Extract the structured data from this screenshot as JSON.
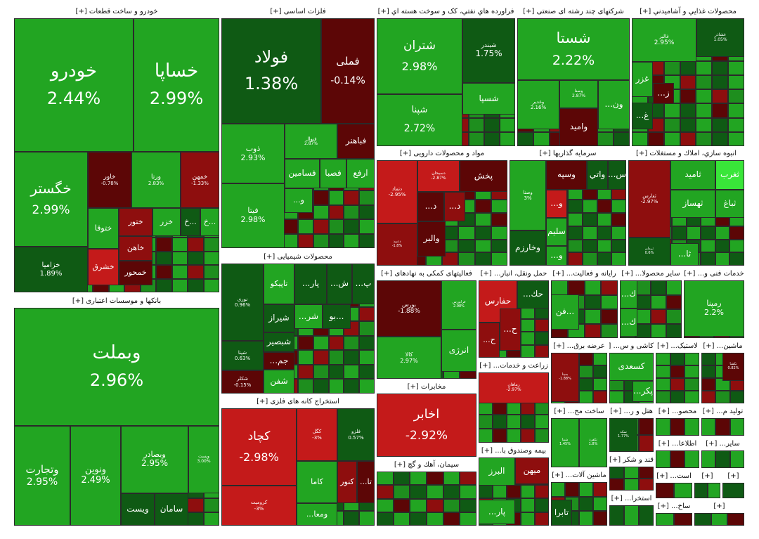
{
  "colors": {
    "bg": "#ffffff",
    "pos_strong": "#22a522",
    "pos_mid": "#1e8e1e",
    "pos_dark": "#0f5a14",
    "pos_bright": "#39e639",
    "neg_strong": "#c41a1a",
    "neg_mid": "#8e0e0e",
    "neg_dark": "#5c0606",
    "flat": "#3a3a3a"
  },
  "chart_data": {
    "type": "treemap",
    "title": "",
    "sectors": [
      {
        "id": "s_auto",
        "name": "خودرو و ساخت قطعات [+]",
        "stocks": [
          {
            "name": "خودرو",
            "change": "2.44%",
            "tone": "pos_strong",
            "big": true
          },
          {
            "name": "خساپا",
            "change": "2.99%",
            "tone": "pos_strong",
            "big": true
          },
          {
            "name": "خگستر",
            "change": "2.99%",
            "tone": "pos_strong",
            "big": true
          },
          {
            "name": "خاور",
            "change": "-0.78%",
            "tone": "neg_dark"
          },
          {
            "name": "ورنا",
            "change": "2.83%",
            "tone": "pos_strong"
          },
          {
            "name": "خمهن",
            "change": "-1.33%",
            "tone": "neg_mid"
          },
          {
            "name": "ختوقا",
            "change": "",
            "tone": "pos_strong"
          },
          {
            "name": "ختور",
            "change": "",
            "tone": "neg_mid"
          },
          {
            "name": "خزر",
            "change": "",
            "tone": "pos_strong"
          },
          {
            "name": "خ...",
            "change": "",
            "tone": "pos_dark"
          },
          {
            "name": "خ...",
            "change": "",
            "tone": "pos_strong"
          },
          {
            "name": "خاهن",
            "change": "",
            "tone": "neg_mid"
          },
          {
            "name": "خزامیا",
            "change": "1.89%",
            "tone": "pos_dark"
          },
          {
            "name": "خشرق",
            "change": "",
            "tone": "neg_strong"
          },
          {
            "name": "خمحور",
            "change": "",
            "tone": "neg_dark"
          }
        ]
      },
      {
        "id": "s_bank",
        "name": "بانکها و موسسات اعتباری [+]",
        "stocks": [
          {
            "name": "وبملت",
            "change": "2.96%",
            "tone": "pos_strong",
            "big": true
          },
          {
            "name": "وتجارت",
            "change": "2.95%",
            "tone": "pos_strong"
          },
          {
            "name": "ونوین",
            "change": "2.49%",
            "tone": "pos_strong"
          },
          {
            "name": "وبصادر",
            "change": "2.95%",
            "tone": "pos_strong"
          },
          {
            "name": "وپست",
            "change": "3.00%",
            "tone": "pos_strong"
          },
          {
            "name": "ویست",
            "change": "",
            "tone": "pos_dark"
          },
          {
            "name": "سامان",
            "change": "",
            "tone": "pos_dark"
          }
        ]
      },
      {
        "id": "s_metal",
        "name": "فلزات اساسی [+]",
        "stocks": [
          {
            "name": "فولاد",
            "change": "1.38%",
            "tone": "pos_dark",
            "big": true
          },
          {
            "name": "فملی",
            "change": "-0.14%",
            "tone": "neg_dark",
            "big": true
          },
          {
            "name": "ذوب",
            "change": "2.93%",
            "tone": "pos_strong"
          },
          {
            "name": "فنوال",
            "change": "2.87%",
            "tone": "pos_strong"
          },
          {
            "name": "فباهنر",
            "change": "",
            "tone": "neg_dark"
          },
          {
            "name": "فسامین",
            "change": "",
            "tone": "pos_strong"
          },
          {
            "name": "فصبا",
            "change": "",
            "tone": "pos_strong"
          },
          {
            "name": "ارفع",
            "change": "",
            "tone": "pos_strong"
          },
          {
            "name": "فیتا",
            "change": "2.98%",
            "tone": "pos_strong"
          },
          {
            "name": "...و",
            "change": "",
            "tone": "pos_strong"
          }
        ]
      },
      {
        "id": "s_petro",
        "name": "محصولات شیمیایی [+]",
        "stocks": [
          {
            "name": "تاپیکو",
            "change": "",
            "tone": "pos_strong"
          },
          {
            "name": "...پار",
            "change": "",
            "tone": "pos_dark"
          },
          {
            "name": "...ش",
            "change": "",
            "tone": "pos_dark"
          },
          {
            "name": "...پ",
            "change": "",
            "tone": "pos_dark"
          },
          {
            "name": "نوری",
            "change": "0.96%",
            "tone": "pos_dark"
          },
          {
            "name": "شیراز",
            "change": "",
            "tone": "pos_dark"
          },
          {
            "name": "...شر",
            "change": "",
            "tone": "pos_strong"
          },
          {
            "name": "بو...",
            "change": "",
            "tone": "pos_dark"
          },
          {
            "name": "شپنا",
            "change": "0.63%",
            "tone": "pos_dark"
          },
          {
            "name": "شبصیر",
            "change": "",
            "tone": "pos_dark"
          },
          {
            "name": "...جم",
            "change": "",
            "tone": "neg_dark"
          },
          {
            "name": "شفن",
            "change": "",
            "tone": "pos_strong"
          },
          {
            "name": "شکلر",
            "change": "-0.15%",
            "tone": "neg_dark"
          }
        ]
      },
      {
        "id": "s_mine",
        "name": "استخراج کانه های فلزی [+]",
        "stocks": [
          {
            "name": "کچاد",
            "change": "-2.98%",
            "tone": "neg_strong",
            "big": true
          },
          {
            "name": "کگل",
            "change": "-3%",
            "tone": "neg_strong"
          },
          {
            "name": "فلزو",
            "change": "0.57%",
            "tone": "pos_dark"
          },
          {
            "name": "کرومیت",
            "change": "-3%",
            "tone": "neg_strong"
          },
          {
            "name": "کاما",
            "change": "",
            "tone": "pos_strong"
          },
          {
            "name": "کنور",
            "change": "",
            "tone": "neg_mid"
          },
          {
            "name": "...تا",
            "change": "",
            "tone": "neg_dark"
          },
          {
            "name": "...ومعا",
            "change": "",
            "tone": "pos_strong"
          }
        ]
      },
      {
        "id": "s_refine",
        "name": "فراورده هاي نفتي، کک و سوخت هسته اي [+]",
        "stocks": [
          {
            "name": "شتران",
            "change": "2.98%",
            "tone": "pos_strong",
            "big": true
          },
          {
            "name": "شبندر",
            "change": "1.75%",
            "tone": "pos_dark"
          },
          {
            "name": "شسپا",
            "change": "",
            "tone": "pos_strong"
          },
          {
            "name": "شپنا",
            "change": "2.72%",
            "tone": "pos_strong",
            "big": true
          }
        ]
      },
      {
        "id": "s_multi",
        "name": "شرکتهای چند رشته ای صنعتی [+]",
        "stocks": [
          {
            "name": "شستا",
            "change": "2.22%",
            "tone": "pos_strong",
            "big": true
          },
          {
            "name": "وغدیر",
            "change": "2.16%",
            "tone": "pos_strong"
          },
          {
            "name": "وصنا",
            "change": "2.87%",
            "tone": "pos_strong"
          },
          {
            "name": "...ون",
            "change": "",
            "tone": "pos_strong"
          },
          {
            "name": "وامید",
            "change": "",
            "tone": "neg_dark"
          }
        ]
      },
      {
        "id": "s_food",
        "name": "محصولات غذايي و آشاميدني [+]",
        "stocks": [
          {
            "name": "غالبر",
            "change": "2.95%",
            "tone": "pos_strong"
          },
          {
            "name": "غشاذر",
            "change": "1.05%",
            "tone": "pos_dark"
          },
          {
            "name": "غزر",
            "change": "",
            "tone": "pos_strong"
          },
          {
            "name": "...ز",
            "change": "",
            "tone": "neg_dark"
          },
          {
            "name": "...غ",
            "change": "",
            "tone": "pos_dark"
          }
        ]
      },
      {
        "id": "s_pharma",
        "name": "مواد و محصولات دارویی [+]",
        "stocks": [
          {
            "name": "دتماد",
            "change": "-2.95%",
            "tone": "neg_strong"
          },
          {
            "name": "دسبحان",
            "change": "-2.87%",
            "tone": "neg_strong"
          },
          {
            "name": "پخش",
            "change": "",
            "tone": "neg_dark"
          },
          {
            "name": "...د",
            "change": "",
            "tone": "neg_dark"
          },
          {
            "name": "...د",
            "change": "",
            "tone": "neg_mid"
          },
          {
            "name": "والبر",
            "change": "",
            "tone": "neg_dark"
          },
          {
            "name": "دعبید",
            "change": "-1.8%",
            "tone": "neg_mid"
          }
        ]
      },
      {
        "id": "s_invest",
        "name": "سرمایه گذاریها [+]",
        "stocks": [
          {
            "name": "وصنا",
            "change": "3%",
            "tone": "pos_strong"
          },
          {
            "name": "وسپه",
            "change": "",
            "tone": "neg_dark"
          },
          {
            "name": "واتي",
            "change": "",
            "tone": "pos_dark"
          },
          {
            "name": "...س",
            "change": "",
            "tone": "pos_dark"
          },
          {
            "name": "...و",
            "change": "",
            "tone": "neg_strong"
          },
          {
            "name": "سلیم",
            "change": "",
            "tone": "pos_strong"
          },
          {
            "name": "وخارزم",
            "change": "",
            "tone": "pos_dark"
          },
          {
            "name": "...و",
            "change": "",
            "tone": "pos_strong"
          }
        ]
      },
      {
        "id": "s_build",
        "name": "انبوه سازي، املاك و مستغلات [+]",
        "stocks": [
          {
            "name": "ثفارس",
            "change": "-2.97%",
            "tone": "neg_mid"
          },
          {
            "name": "ثامید",
            "change": "",
            "tone": "pos_strong"
          },
          {
            "name": "ثغرب",
            "change": "",
            "tone": "pos_bright"
          },
          {
            "name": "ثهساز",
            "change": "",
            "tone": "pos_strong"
          },
          {
            "name": "ثباغ",
            "change": "",
            "tone": "pos_strong"
          },
          {
            "name": "ثرمان",
            "change": "0.6%",
            "tone": "pos_dark"
          },
          {
            "name": "...ثا",
            "change": "",
            "tone": "pos_strong"
          }
        ]
      },
      {
        "id": "s_finsup",
        "name": "فعالیتهای کمکی به نهادهای [+]",
        "stocks": [
          {
            "name": "بورس",
            "change": "-1.88%",
            "tone": "neg_dark"
          },
          {
            "name": "فرابورس",
            "change": "2.98%",
            "tone": "pos_strong"
          },
          {
            "name": "کالا",
            "change": "2.97%",
            "tone": "pos_strong"
          },
          {
            "name": "انرژی",
            "change": "",
            "tone": "pos_strong"
          }
        ]
      },
      {
        "id": "s_transport",
        "name": "حمل ونقل، انبار... [+]",
        "stocks": [
          {
            "name": "حفارس",
            "change": "",
            "tone": "neg_strong"
          },
          {
            "name": "...حك",
            "change": "",
            "tone": "pos_dark"
          },
          {
            "name": "...ح",
            "change": "",
            "tone": "neg_mid"
          },
          {
            "name": "...ح",
            "change": "",
            "tone": "neg_mid"
          }
        ]
      },
      {
        "id": "s_comp",
        "name": "رایانه و فعالیت... [+]",
        "stocks": [
          {
            "name": "فن...",
            "change": "",
            "tone": "pos_strong"
          }
        ]
      },
      {
        "id": "s_otherprod",
        "name": "سایر محصولا... [+]",
        "stocks": [
          {
            "name": "...ك",
            "change": "",
            "tone": "pos_strong"
          },
          {
            "name": "...ك",
            "change": "",
            "tone": "pos_strong"
          }
        ]
      },
      {
        "id": "s_tech",
        "name": "خدمات فنی و... [+]",
        "stocks": [
          {
            "name": "رمپنا",
            "change": "2.2%",
            "tone": "pos_strong"
          }
        ]
      },
      {
        "id": "s_telecom",
        "name": "مخابرات [+]",
        "stocks": [
          {
            "name": "اخابر",
            "change": "-2.92%",
            "tone": "neg_strong",
            "big": true
          }
        ]
      },
      {
        "id": "s_agri",
        "name": "زراعت و خدمات... [+]",
        "stocks": [
          {
            "name": "زماهان",
            "change": "-2.97%",
            "tone": "neg_strong"
          }
        ]
      },
      {
        "id": "s_cement",
        "name": "سیمان، آهك و گچ [+]",
        "stocks": []
      },
      {
        "id": "s_insur",
        "name": "بیمه وصندوق با... [+]",
        "stocks": [
          {
            "name": "البرز",
            "change": "",
            "tone": "pos_strong"
          },
          {
            "name": "میهن",
            "change": "",
            "tone": "neg_mid"
          },
          {
            "name": "...پار",
            "change": "",
            "tone": "pos_strong"
          }
        ]
      },
      {
        "id": "s_power",
        "name": "عرضه برق... [+]",
        "stocks": [
          {
            "name": "بمپنا",
            "change": "-1.88%",
            "tone": "neg_mid"
          }
        ]
      },
      {
        "id": "s_tile",
        "name": "کاشی و س... [+]",
        "stocks": [
          {
            "name": "کسعدی",
            "change": "",
            "tone": "pos_strong"
          },
          {
            "name": "...پکر",
            "change": "",
            "tone": "pos_strong"
          }
        ]
      },
      {
        "id": "s_rubber",
        "name": "لاستیک... [+]",
        "stocks": []
      },
      {
        "id": "s_machine",
        "name": "ماشین... [+]",
        "stocks": [
          {
            "name": "تکشا",
            "change": "0.82%",
            "tone": "neg_dark"
          }
        ]
      },
      {
        "id": "s_mass",
        "name": "ساخت مح... [+]",
        "stocks": [
          {
            "name": "شبنا",
            "change": "1.45%",
            "tone": "pos_strong"
          },
          {
            "name": "تکفرد",
            "change": "1.8%",
            "tone": "pos_strong"
          }
        ]
      },
      {
        "id": "s_hotel",
        "name": "هتل و ر... [+]",
        "stocks": [
          {
            "name": "سکه",
            "change": "1.77%",
            "tone": "pos_dark"
          }
        ]
      },
      {
        "id": "s_sugar",
        "name": "قند و شکر [+]",
        "stocks": []
      },
      {
        "id": "s_elec",
        "name": "ماشین آلات... [+]",
        "stocks": [
          {
            "name": "تابرا",
            "change": "",
            "tone": "pos_dark"
          }
        ]
      },
      {
        "id": "s_extract",
        "name": "استخرا... [+]",
        "stocks": []
      },
      {
        "id": "s_info",
        "name": "اطلاعا... [+]",
        "stocks": []
      },
      {
        "id": "s_other2",
        "name": "سایر... [+]",
        "stocks": []
      },
      {
        "id": "s_prod",
        "name": "تولید م... [+]",
        "stocks": []
      },
      {
        "id": "s_pulp",
        "name": "محصو... [+]",
        "stocks": []
      },
      {
        "id": "s_ast",
        "name": "است... [+]",
        "stocks": []
      },
      {
        "id": "s_wood",
        "name": "ساخ... [+]",
        "stocks": []
      },
      {
        "id": "s_misc1",
        "name": "[+]",
        "stocks": []
      },
      {
        "id": "s_misc2",
        "name": "[+]",
        "stocks": []
      },
      {
        "id": "s_misc3",
        "name": "[+]",
        "stocks": []
      }
    ]
  }
}
